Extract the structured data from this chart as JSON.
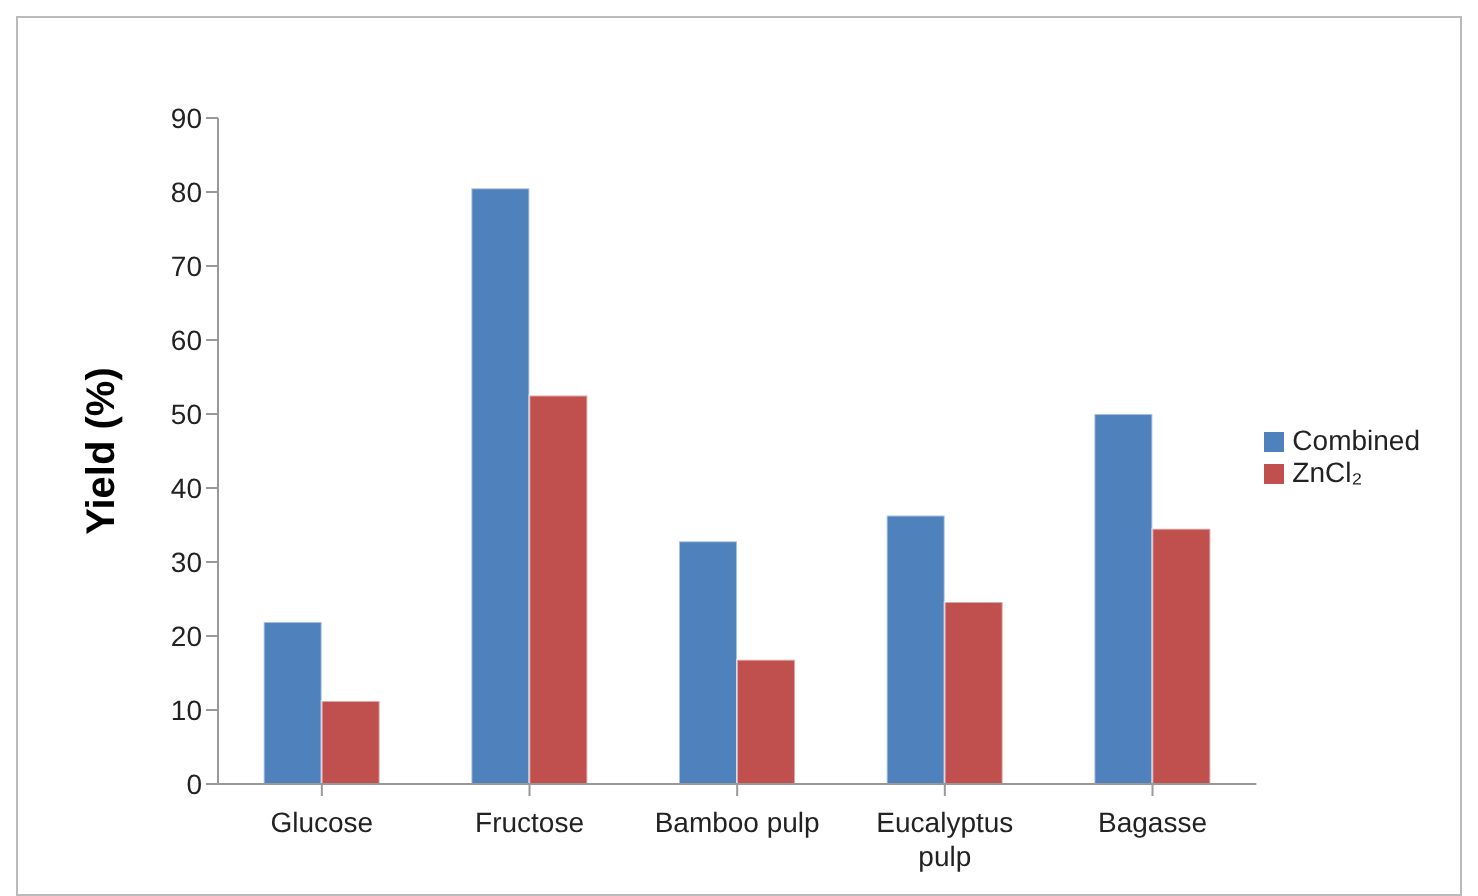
{
  "chart_data": {
    "type": "bar",
    "ylabel": "Yield (%)",
    "categories": [
      "Glucose",
      "Fructose",
      "Bamboo pulp",
      "Eucalyptus pulp",
      "Bagasse"
    ],
    "series": [
      {
        "name": "Combined",
        "color": "#4f81bd",
        "values": [
          21.9,
          80.5,
          32.8,
          36.3,
          50.0
        ]
      },
      {
        "name": "ZnCl₂",
        "color": "#c0504d",
        "values": [
          11.2,
          52.5,
          16.8,
          24.6,
          34.5
        ]
      }
    ],
    "ylim": [
      0,
      90
    ],
    "yticks": [
      0,
      10,
      20,
      30,
      40,
      50,
      60,
      70,
      80,
      90
    ],
    "grid": false,
    "legend": "right"
  }
}
